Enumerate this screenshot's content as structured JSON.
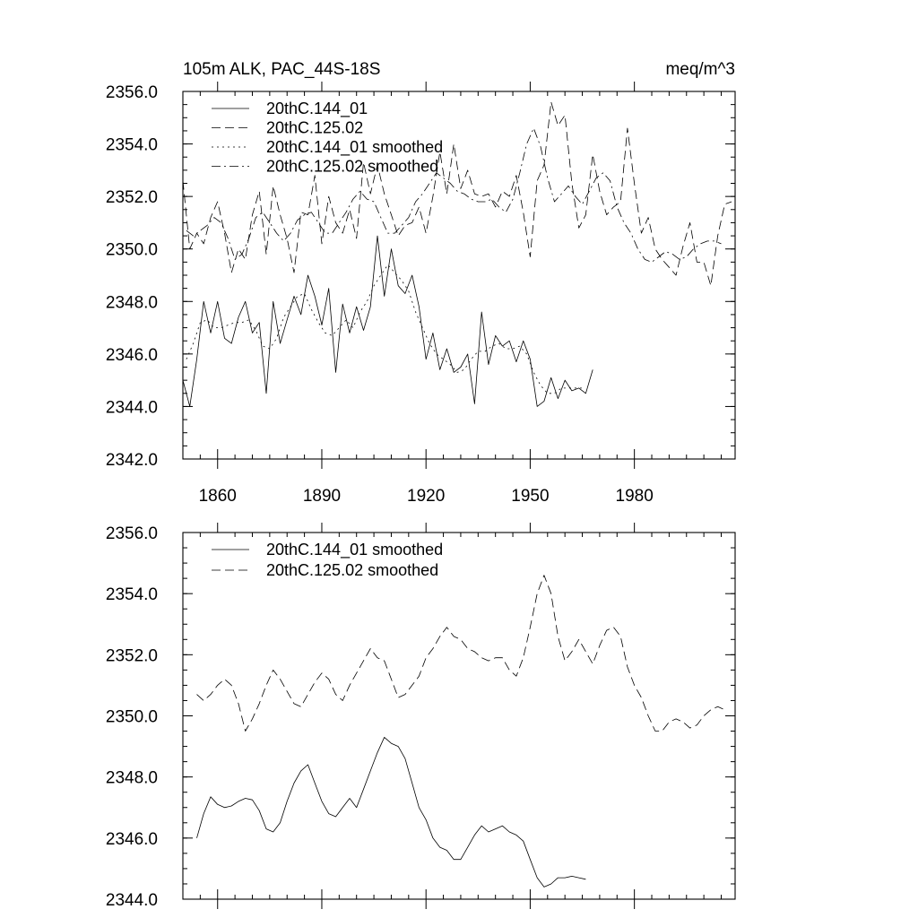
{
  "chart_data": [
    {
      "type": "line",
      "title": "105m ALK, PAC_44S-18S",
      "units": "meq/m^3",
      "xlim": [
        1850,
        2009
      ],
      "ylim": [
        2342.0,
        2356.0
      ],
      "yticks": [
        2342.0,
        2344.0,
        2346.0,
        2348.0,
        2350.0,
        2352.0,
        2354.0,
        2356.0
      ],
      "ytick_labels": [
        "2342.0",
        "2344.0",
        "2346.0",
        "2348.0",
        "2350.0",
        "2352.0",
        "2354.0",
        "2356.0"
      ],
      "xticks": [
        1860,
        1890,
        1920,
        1950,
        1980
      ],
      "xtick_labels": [
        "1860",
        "1890",
        "1920",
        "1950",
        "1980"
      ],
      "legend_position": "top-left",
      "series": [
        {
          "name": "20thC.144_01",
          "style": "solid",
          "x": [
            1850,
            1852,
            1854,
            1856,
            1858,
            1860,
            1862,
            1864,
            1866,
            1868,
            1870,
            1872,
            1874,
            1876,
            1878,
            1880,
            1882,
            1884,
            1886,
            1888,
            1890,
            1892,
            1894,
            1896,
            1898,
            1900,
            1902,
            1904,
            1906,
            1908,
            1910,
            1912,
            1914,
            1916,
            1918,
            1920,
            1922,
            1924,
            1926,
            1928,
            1930,
            1932,
            1934,
            1936,
            1938,
            1940,
            1942,
            1944,
            1946,
            1948,
            1950,
            1952,
            1954,
            1956,
            1958,
            1960,
            1962,
            1964,
            1966,
            1968
          ],
          "values": [
            2345.0,
            2344.0,
            2345.8,
            2348.0,
            2346.8,
            2348.0,
            2346.6,
            2346.4,
            2347.4,
            2348.0,
            2346.8,
            2347.2,
            2344.5,
            2348.0,
            2346.4,
            2347.3,
            2348.2,
            2347.5,
            2349.0,
            2348.2,
            2347.1,
            2348.5,
            2345.3,
            2347.9,
            2346.8,
            2347.8,
            2346.9,
            2347.8,
            2350.5,
            2348.2,
            2350.0,
            2348.6,
            2348.3,
            2349.0,
            2347.8,
            2345.8,
            2346.8,
            2345.4,
            2346.2,
            2345.3,
            2345.5,
            2346.0,
            2344.1,
            2347.6,
            2345.6,
            2346.7,
            2346.3,
            2346.5,
            2345.7,
            2346.5,
            2345.8,
            2344.0,
            2344.2,
            2345.1,
            2344.3,
            2345.0,
            2344.6,
            2344.7,
            2344.5,
            2345.4
          ]
        },
        {
          "name": "20thC.125.02",
          "style": "dashed",
          "x": [
            1850,
            1852,
            1854,
            1856,
            1858,
            1860,
            1862,
            1864,
            1866,
            1868,
            1870,
            1872,
            1874,
            1876,
            1878,
            1880,
            1882,
            1884,
            1886,
            1888,
            1890,
            1892,
            1894,
            1896,
            1898,
            1900,
            1902,
            1904,
            1906,
            1908,
            1910,
            1912,
            1914,
            1916,
            1918,
            1920,
            1922,
            1924,
            1926,
            1928,
            1930,
            1932,
            1934,
            1936,
            1938,
            1940,
            1942,
            1944,
            1946,
            1948,
            1950,
            1952,
            1954,
            1956,
            1958,
            1960,
            1962,
            1964,
            1966,
            1968,
            1970,
            1972,
            1974,
            1976,
            1978,
            1980,
            1982,
            1984,
            1986,
            1988,
            1990,
            1992,
            1994,
            1996,
            1998,
            2000,
            2002,
            2004,
            2006,
            2008
          ],
          "values": [
            2352.6,
            2350.0,
            2350.6,
            2350.2,
            2351.2,
            2351.8,
            2350.6,
            2349.1,
            2350.0,
            2349.6,
            2351.3,
            2352.2,
            2349.8,
            2352.4,
            2351.3,
            2350.4,
            2349.1,
            2351.4,
            2351.3,
            2352.8,
            2350.2,
            2352.0,
            2351.0,
            2350.6,
            2351.5,
            2350.4,
            2353.3,
            2352.1,
            2353.2,
            2352.1,
            2351.3,
            2350.5,
            2350.9,
            2351.0,
            2351.6,
            2350.6,
            2352.0,
            2353.7,
            2352.1,
            2354.0,
            2352.3,
            2353.0,
            2352.1,
            2352.0,
            2352.1,
            2351.6,
            2352.2,
            2352.0,
            2352.8,
            2351.4,
            2349.7,
            2352.6,
            2353.2,
            2355.6,
            2354.7,
            2355.1,
            2352.5,
            2350.8,
            2351.3,
            2353.6,
            2352.2,
            2351.3,
            2351.6,
            2351.8,
            2354.6,
            2352.5,
            2350.6,
            2351.2,
            2350.0,
            2349.6,
            2349.3,
            2349.0,
            2350.1,
            2351.0,
            2349.5,
            2349.5,
            2348.6,
            2350.5,
            2351.7,
            2351.8
          ]
        },
        {
          "name": "20thC.144_01 smoothed",
          "style": "dotted",
          "x": [
            1851,
            1853,
            1855,
            1857,
            1859,
            1861,
            1863,
            1865,
            1867,
            1869,
            1871,
            1873,
            1875,
            1877,
            1879,
            1881,
            1883,
            1885,
            1887,
            1889,
            1891,
            1893,
            1895,
            1897,
            1899,
            1901,
            1903,
            1905,
            1907,
            1909,
            1911,
            1913,
            1915,
            1917,
            1919,
            1921,
            1923,
            1925,
            1927,
            1929,
            1931,
            1933,
            1935,
            1937,
            1939,
            1941,
            1943,
            1945,
            1947,
            1949,
            1951,
            1953,
            1955,
            1957,
            1959,
            1961,
            1963,
            1965
          ],
          "values": [
            2345.8,
            2346.4,
            2347.2,
            2347.3,
            2347.0,
            2347.0,
            2347.1,
            2347.2,
            2347.2,
            2347.3,
            2346.9,
            2346.3,
            2346.2,
            2346.6,
            2347.4,
            2347.8,
            2348.2,
            2348.3,
            2347.7,
            2347.2,
            2346.8,
            2346.7,
            2347.0,
            2347.3,
            2347.0,
            2347.6,
            2348.0,
            2348.6,
            2349.0,
            2349.4,
            2349.1,
            2348.8,
            2348.4,
            2347.6,
            2347.0,
            2346.4,
            2346.0,
            2345.8,
            2345.6,
            2345.3,
            2345.4,
            2345.8,
            2346.1,
            2346.1,
            2346.3,
            2346.4,
            2346.2,
            2346.2,
            2346.3,
            2346.0,
            2345.3,
            2344.8,
            2344.5,
            2344.5,
            2344.7,
            2344.7,
            2344.7,
            2344.7
          ]
        },
        {
          "name": "20thC.125.02 smoothed",
          "style": "dashdot",
          "x": [
            1851,
            1853,
            1855,
            1857,
            1859,
            1861,
            1863,
            1865,
            1867,
            1869,
            1871,
            1873,
            1875,
            1877,
            1879,
            1881,
            1883,
            1885,
            1887,
            1889,
            1891,
            1893,
            1895,
            1897,
            1899,
            1901,
            1903,
            1905,
            1907,
            1909,
            1911,
            1913,
            1915,
            1917,
            1919,
            1921,
            1923,
            1925,
            1927,
            1929,
            1931,
            1933,
            1935,
            1937,
            1939,
            1941,
            1943,
            1945,
            1947,
            1949,
            1951,
            1953,
            1955,
            1957,
            1959,
            1961,
            1963,
            1965,
            1967,
            1969,
            1971,
            1973,
            1975,
            1977,
            1979,
            1981,
            1983,
            1985,
            1987,
            1989,
            1991,
            1993,
            1995,
            1997,
            1999,
            2001,
            2003,
            2005
          ],
          "values": [
            2350.7,
            2350.5,
            2350.7,
            2350.9,
            2351.2,
            2351.0,
            2350.4,
            2349.6,
            2349.8,
            2350.4,
            2351.2,
            2351.4,
            2351.0,
            2350.6,
            2350.3,
            2350.6,
            2351.1,
            2351.3,
            2351.4,
            2351.0,
            2350.6,
            2350.6,
            2351.0,
            2351.4,
            2351.9,
            2352.2,
            2351.9,
            2351.8,
            2351.2,
            2350.6,
            2350.6,
            2350.9,
            2351.2,
            2351.8,
            2352.1,
            2352.5,
            2352.9,
            2352.7,
            2352.5,
            2352.2,
            2352.1,
            2351.9,
            2351.8,
            2351.8,
            2351.9,
            2351.6,
            2351.4,
            2351.9,
            2352.9,
            2354.0,
            2354.6,
            2353.9,
            2352.7,
            2351.8,
            2352.1,
            2352.4,
            2352.0,
            2351.7,
            2352.2,
            2352.7,
            2352.9,
            2352.6,
            2351.6,
            2351.0,
            2350.6,
            2350.0,
            2349.6,
            2349.5,
            2349.7,
            2349.9,
            2349.8,
            2349.6,
            2349.7,
            2350.0,
            2350.2,
            2350.3,
            2350.3,
            2350.2
          ]
        }
      ]
    },
    {
      "type": "line",
      "title": "",
      "xlim": [
        1850,
        2009
      ],
      "ylim": [
        2344.0,
        2356.0
      ],
      "yticks": [
        2344.0,
        2346.0,
        2348.0,
        2350.0,
        2352.0,
        2354.0,
        2356.0
      ],
      "ytick_labels": [
        "2344.0",
        "2346.0",
        "2348.0",
        "2350.0",
        "2352.0",
        "2354.0",
        "2356.0"
      ],
      "xticks": [
        1860,
        1890,
        1920,
        1950,
        1980
      ],
      "xtick_labels": [],
      "legend_position": "top-left",
      "series": [
        {
          "name": "20thC.144_01 smoothed",
          "style": "solid",
          "x": [
            1854,
            1856,
            1858,
            1860,
            1862,
            1864,
            1866,
            1868,
            1870,
            1872,
            1874,
            1876,
            1878,
            1880,
            1882,
            1884,
            1886,
            1888,
            1890,
            1892,
            1894,
            1896,
            1898,
            1900,
            1902,
            1904,
            1906,
            1908,
            1910,
            1912,
            1914,
            1916,
            1918,
            1920,
            1922,
            1924,
            1926,
            1928,
            1930,
            1932,
            1934,
            1936,
            1938,
            1940,
            1942,
            1944,
            1946,
            1948,
            1950,
            1952,
            1954,
            1956,
            1958,
            1960,
            1962,
            1964,
            1966
          ],
          "values": [
            2346.0,
            2346.8,
            2347.35,
            2347.1,
            2347.0,
            2347.05,
            2347.2,
            2347.3,
            2347.25,
            2346.9,
            2346.3,
            2346.2,
            2346.5,
            2347.2,
            2347.8,
            2348.2,
            2348.4,
            2347.8,
            2347.2,
            2346.8,
            2346.7,
            2347.0,
            2347.3,
            2347.0,
            2347.6,
            2348.2,
            2348.8,
            2349.3,
            2349.1,
            2349.0,
            2348.6,
            2347.8,
            2347.0,
            2346.6,
            2346.0,
            2345.7,
            2345.6,
            2345.3,
            2345.3,
            2345.7,
            2346.1,
            2346.4,
            2346.2,
            2346.3,
            2346.4,
            2346.2,
            2346.1,
            2345.9,
            2345.3,
            2344.7,
            2344.4,
            2344.5,
            2344.7,
            2344.7,
            2344.75,
            2344.7,
            2344.65
          ]
        },
        {
          "name": "20thC.125.02 smoothed",
          "style": "dashed",
          "x": [
            1854,
            1856,
            1858,
            1860,
            1862,
            1864,
            1866,
            1868,
            1870,
            1872,
            1874,
            1876,
            1878,
            1880,
            1882,
            1884,
            1886,
            1888,
            1890,
            1892,
            1894,
            1896,
            1898,
            1900,
            1902,
            1904,
            1906,
            1908,
            1910,
            1912,
            1914,
            1916,
            1918,
            1920,
            1922,
            1924,
            1926,
            1928,
            1930,
            1932,
            1934,
            1936,
            1938,
            1940,
            1942,
            1944,
            1946,
            1948,
            1950,
            1952,
            1954,
            1956,
            1958,
            1960,
            1962,
            1964,
            1966,
            1968,
            1970,
            1972,
            1974,
            1976,
            1978,
            1980,
            1982,
            1984,
            1986,
            1988,
            1990,
            1992,
            1994,
            1996,
            1998,
            2000,
            2002,
            2004,
            2006
          ],
          "values": [
            2350.7,
            2350.5,
            2350.7,
            2351.0,
            2351.2,
            2351.0,
            2350.4,
            2349.5,
            2349.9,
            2350.4,
            2351.0,
            2351.5,
            2351.2,
            2350.8,
            2350.4,
            2350.3,
            2350.7,
            2351.1,
            2351.4,
            2351.2,
            2350.7,
            2350.5,
            2351.0,
            2351.4,
            2351.8,
            2352.2,
            2351.9,
            2351.8,
            2351.2,
            2350.6,
            2350.7,
            2351.0,
            2351.3,
            2351.9,
            2352.2,
            2352.6,
            2352.9,
            2352.6,
            2352.5,
            2352.2,
            2352.1,
            2351.9,
            2351.8,
            2351.9,
            2351.9,
            2351.5,
            2351.3,
            2351.9,
            2352.9,
            2354.0,
            2354.6,
            2354.0,
            2352.6,
            2351.8,
            2352.1,
            2352.5,
            2352.1,
            2351.7,
            2352.3,
            2352.8,
            2352.9,
            2352.6,
            2351.6,
            2351.0,
            2350.6,
            2350.0,
            2349.5,
            2349.5,
            2349.8,
            2349.9,
            2349.8,
            2349.6,
            2349.7,
            2350.0,
            2350.2,
            2350.3,
            2350.2
          ]
        }
      ]
    }
  ]
}
